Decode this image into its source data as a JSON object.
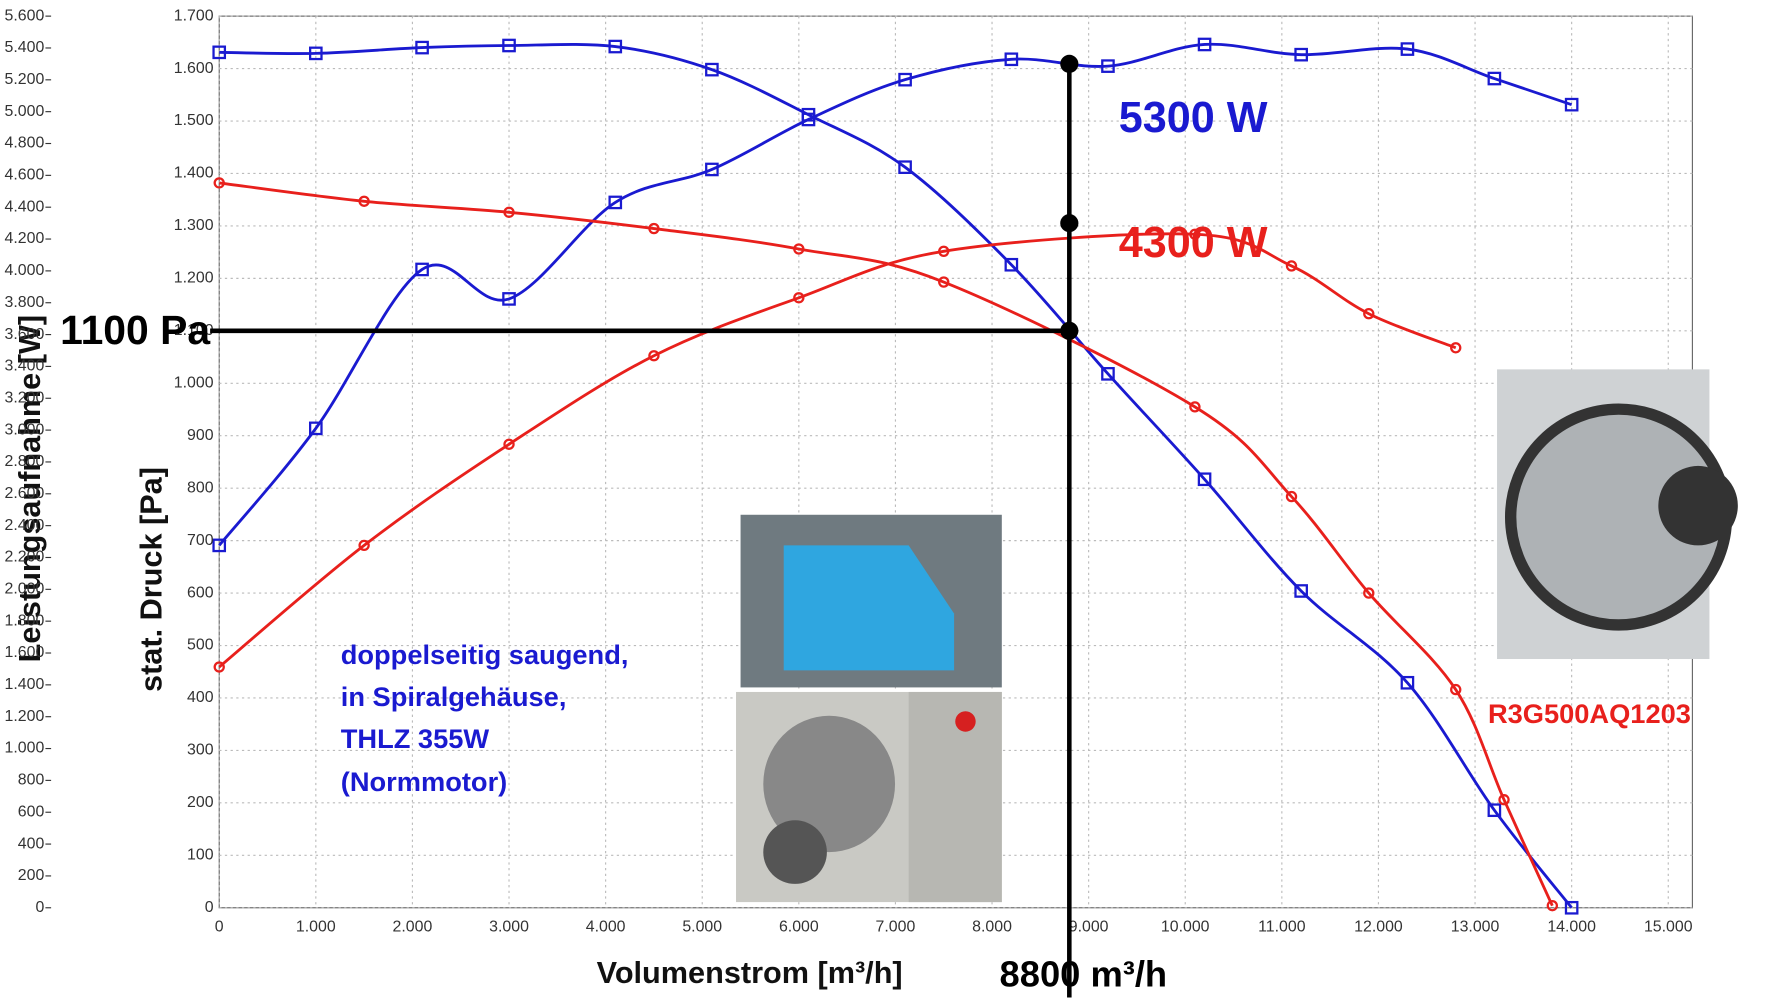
{
  "chart_data": {
    "type": "line",
    "x_label": "Volumenstrom [m³/h]",
    "y_label": "Leistungsaufnahme [W]",
    "y2_label": "stat. Druck [Pa]",
    "xlim": [
      0,
      15250
    ],
    "ylim": [
      0,
      5600
    ],
    "y2lim": [
      0,
      1700
    ],
    "grid": true,
    "xticks": [
      0,
      {
        "value": 1000,
        "label": "1.000"
      },
      {
        "value": 2000,
        "label": "2.000"
      },
      {
        "value": 3000,
        "label": "3.000"
      },
      {
        "value": 4000,
        "label": "4.000"
      },
      {
        "value": 5000,
        "label": "5.000"
      },
      {
        "value": 6000,
        "label": "6.000"
      },
      {
        "value": 7000,
        "label": "7.000"
      },
      {
        "value": 8000,
        "label": "8.000"
      },
      {
        "value": 9000,
        "label": "9.000"
      },
      {
        "value": 10000,
        "label": "10.000"
      },
      {
        "value": 11000,
        "label": "11.000"
      },
      {
        "value": 12000,
        "label": "12.000"
      },
      {
        "value": 13000,
        "label": "13.000"
      },
      {
        "value": 14000,
        "label": "14.000"
      },
      {
        "value": 15000,
        "label": "15.000"
      }
    ],
    "yticks": [
      0,
      200,
      400,
      600,
      800,
      {
        "value": 1000,
        "label": "1.000"
      },
      {
        "value": 1200,
        "label": "1.200"
      },
      {
        "value": 1400,
        "label": "1.400"
      },
      {
        "value": 1600,
        "label": "1.600"
      },
      {
        "value": 1800,
        "label": "1.800"
      },
      {
        "value": 2000,
        "label": "2.000"
      },
      {
        "value": 2200,
        "label": "2.200"
      },
      {
        "value": 2400,
        "label": "2.400"
      },
      {
        "value": 2600,
        "label": "2.600"
      },
      {
        "value": 2800,
        "label": "2.800"
      },
      {
        "value": 3000,
        "label": "3.000"
      },
      {
        "value": 3200,
        "label": "3.200"
      },
      {
        "value": 3400,
        "label": "3.400"
      },
      {
        "value": 3600,
        "label": "3.600"
      },
      {
        "value": 3800,
        "label": "3.800"
      },
      {
        "value": 4000,
        "label": "4.000"
      },
      {
        "value": 4200,
        "label": "4.200"
      },
      {
        "value": 4400,
        "label": "4.400"
      },
      {
        "value": 4600,
        "label": "4.600"
      },
      {
        "value": 4800,
        "label": "4.800"
      },
      {
        "value": 5000,
        "label": "5.000"
      },
      {
        "value": 5200,
        "label": "5.200"
      },
      {
        "value": 5400,
        "label": "5.400"
      },
      {
        "value": 5600,
        "label": "5.600"
      }
    ],
    "y2ticks": [
      0,
      100,
      200,
      300,
      400,
      500,
      600,
      700,
      800,
      900,
      {
        "value": 1000,
        "label": "1.000"
      },
      {
        "value": 1100,
        "label": "1.100"
      },
      {
        "value": 1200,
        "label": "1.200"
      },
      {
        "value": 1300,
        "label": "1.300"
      },
      {
        "value": 1400,
        "label": "1.400"
      },
      {
        "value": 1500,
        "label": "1.500"
      },
      {
        "value": 1600,
        "label": "1.600"
      },
      {
        "value": 1700,
        "label": "1.700"
      }
    ],
    "series": [
      {
        "color": "#1a1ad0",
        "marker": "square",
        "axis": "y2",
        "x": [
          0,
          1000,
          2100,
          3000,
          4100,
          5100,
          6100,
          7100,
          8200,
          9200,
          10200,
          11200,
          12300,
          13200,
          14000
        ],
        "values": [
          1631,
          1629,
          1640,
          1644,
          1642,
          1598,
          1512,
          1412,
          1226,
          1018,
          817,
          604,
          429,
          186,
          0
        ]
      },
      {
        "color": "#1a1ad0",
        "marker": "square",
        "axis": "y",
        "x": [
          0,
          1000,
          2100,
          3000,
          4100,
          5100,
          6100,
          7100,
          8200,
          9200,
          10200,
          11200,
          12300,
          13200,
          14000
        ],
        "values": [
          2276,
          3011,
          4009,
          3824,
          4430,
          4637,
          4951,
          5201,
          5329,
          5286,
          5422,
          5358,
          5393,
          5208,
          5044
        ]
      },
      {
        "color": "#e8201c",
        "marker": "circle",
        "axis": "y2",
        "x": [
          0,
          1500,
          3000,
          4500,
          6000,
          7500,
          10100,
          11100,
          11900,
          12800,
          13300,
          13800
        ],
        "values": [
          1382,
          1347,
          1326,
          1295,
          1256,
          1193,
          955,
          784,
          600,
          416,
          206,
          4
        ]
      },
      {
        "color": "#e8201c",
        "marker": "circle",
        "axis": "y",
        "x": [
          0,
          1500,
          3000,
          4500,
          6000,
          7500,
          10100,
          11100,
          11900,
          12800
        ],
        "values": [
          1512,
          2276,
          2911,
          3467,
          3831,
          4123,
          4230,
          4031,
          3731,
          3517
        ]
      }
    ],
    "reference": {
      "x": {
        "value": 8800,
        "label": "8800 m³/h"
      },
      "y2": {
        "value": 1100,
        "label": "1100 Pa"
      },
      "points": [
        {
          "value": 5300,
          "label": "5300 W",
          "color": "#1a1ad0"
        },
        {
          "value": 4300,
          "label": "4300 W",
          "color": "#e8201c"
        }
      ]
    },
    "annotations": [
      {
        "text": "doppelseitig saugend,",
        "color": "#1a1ad0"
      },
      {
        "text": "in Spiralgehäuse,",
        "color": "#1a1ad0"
      },
      {
        "text": "THLZ 355W",
        "color": "#1a1ad0"
      },
      {
        "text": "(Normmotor)",
        "color": "#1a1ad0"
      },
      {
        "text": "R3G500AQ1203",
        "color": "#e8201c"
      }
    ]
  }
}
